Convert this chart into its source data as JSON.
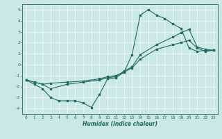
{
  "title": "",
  "xlabel": "Humidex (Indice chaleur)",
  "xlim": [
    -0.5,
    23.5
  ],
  "ylim": [
    -4.5,
    5.5
  ],
  "xticks": [
    0,
    1,
    2,
    3,
    4,
    5,
    6,
    7,
    8,
    9,
    10,
    11,
    12,
    13,
    14,
    15,
    16,
    17,
    18,
    19,
    20,
    21,
    22,
    23
  ],
  "yticks": [
    -4,
    -3,
    -2,
    -1,
    0,
    1,
    2,
    3,
    4,
    5
  ],
  "background_color": "#c9e8e6",
  "line_color": "#1e6b63",
  "grid_color": "#f5f5f5",
  "line1_x": [
    0,
    1,
    2,
    3,
    4,
    5,
    6,
    7,
    8,
    9,
    10,
    11,
    12,
    13,
    14,
    15,
    16,
    17,
    18,
    19,
    20,
    21,
    22,
    23
  ],
  "line1_y": [
    -1.4,
    -1.8,
    -2.2,
    -3.0,
    -3.3,
    -3.3,
    -3.3,
    -3.5,
    -3.9,
    -2.7,
    -1.3,
    -1.2,
    -0.7,
    0.9,
    4.5,
    5.0,
    4.5,
    4.2,
    3.7,
    3.3,
    1.5,
    1.2,
    1.3,
    1.3
  ],
  "line2_x": [
    0,
    1,
    2,
    3,
    5,
    7,
    9,
    10,
    11,
    12,
    13,
    14,
    16,
    18,
    19,
    20,
    21,
    22,
    23
  ],
  "line2_y": [
    -1.4,
    -1.6,
    -1.8,
    -1.7,
    -1.6,
    -1.5,
    -1.3,
    -1.1,
    -1.0,
    -0.7,
    -0.3,
    0.5,
    1.4,
    1.8,
    2.0,
    2.2,
    1.5,
    1.2,
    1.3
  ],
  "line3_x": [
    0,
    1,
    2,
    3,
    5,
    7,
    9,
    10,
    11,
    12,
    13,
    14,
    16,
    18,
    19,
    20,
    21,
    22,
    23
  ],
  "line3_y": [
    -1.4,
    -1.6,
    -1.8,
    -2.2,
    -1.8,
    -1.6,
    -1.4,
    -1.2,
    -1.1,
    -0.6,
    -0.2,
    0.9,
    1.8,
    2.5,
    2.9,
    3.2,
    1.6,
    1.4,
    1.3
  ]
}
